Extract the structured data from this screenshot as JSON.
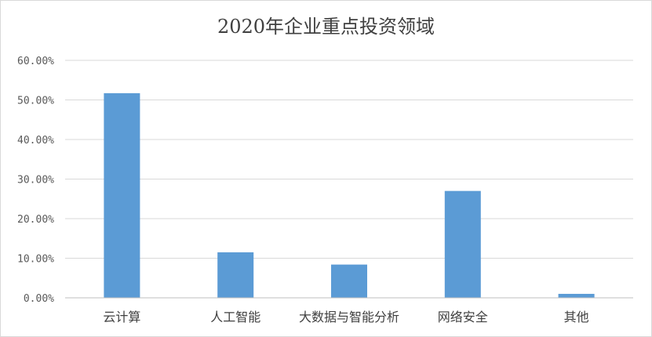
{
  "chart_data": {
    "type": "bar",
    "title": "2020年企业重点投资领域",
    "categories": [
      "云计算",
      "人工智能",
      "大数据与智能分析",
      "网络安全",
      "其他"
    ],
    "values": [
      0.517,
      0.115,
      0.084,
      0.27,
      0.01
    ],
    "ylim": [
      0,
      0.6
    ],
    "yticks": [
      0,
      0.1,
      0.2,
      0.3,
      0.4,
      0.5,
      0.6
    ],
    "ytick_labels": [
      "0.00%",
      "10.00%",
      "20.00%",
      "30.00%",
      "40.00%",
      "50.00%",
      "60.00%"
    ],
    "bar_color": "#5b9bd5",
    "gridline_color": "#d9d9d9",
    "grid": true,
    "legend": "none"
  }
}
